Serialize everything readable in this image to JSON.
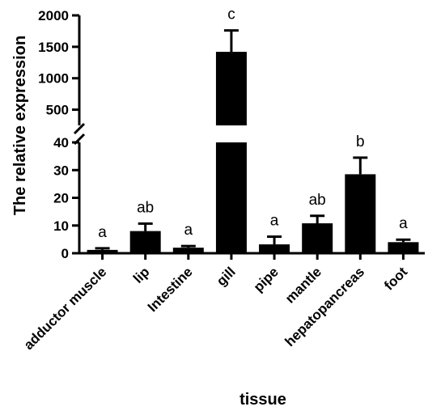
{
  "chart_data": {
    "type": "bar",
    "title": "",
    "xlabel": "tissue",
    "ylabel": "The relative expression",
    "categories": [
      "adductor muscle",
      "lip",
      "Intestine",
      "gill",
      "pipe",
      "mantle",
      "hepatopancreas",
      "foot"
    ],
    "values": [
      1.2,
      8.0,
      2.0,
      1420,
      3.2,
      10.8,
      28.5,
      4.0
    ],
    "errors": [
      0.6,
      2.7,
      0.6,
      340,
      2.8,
      2.7,
      6.0,
      0.9
    ],
    "significance": [
      "a",
      "ab",
      "a",
      "c",
      "a",
      "ab",
      "b",
      "a"
    ],
    "broken_axis": true,
    "segments": [
      {
        "ylim": [
          0,
          40
        ],
        "ticks": [
          0,
          10,
          20,
          30,
          40
        ]
      },
      {
        "ylim": [
          250,
          2000
        ],
        "ticks": [
          500,
          1000,
          1500,
          2000
        ]
      }
    ],
    "bar_color": "#000000",
    "grid": false,
    "legend": "none"
  }
}
